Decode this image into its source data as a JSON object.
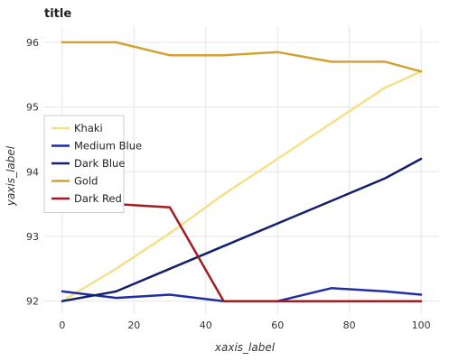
{
  "chart_data": {
    "type": "line",
    "title": "title",
    "xlabel": "xaxis_label",
    "ylabel": "yaxis_label",
    "x": [
      0,
      15,
      30,
      45,
      60,
      75,
      90,
      100
    ],
    "xlim": [
      -5,
      105
    ],
    "ylim": [
      91.8,
      96.25
    ],
    "xticks": [
      0,
      20,
      40,
      60,
      80,
      100
    ],
    "yticks": [
      92,
      93,
      94,
      95,
      96
    ],
    "grid": true,
    "legend_position": "left",
    "series": [
      {
        "name": "Khaki",
        "color": "#f5e08a",
        "values": [
          92.0,
          92.5,
          93.05,
          93.65,
          94.2,
          94.75,
          95.3,
          95.55
        ]
      },
      {
        "name": "Medium Blue",
        "color": "#1f2fa3",
        "values": [
          92.15,
          92.05,
          92.1,
          92.0,
          92.0,
          92.2,
          92.15,
          92.1
        ]
      },
      {
        "name": "Dark Blue",
        "color": "#121f6b",
        "values": [
          92.0,
          92.15,
          92.5,
          92.85,
          93.2,
          93.55,
          93.9,
          94.2
        ]
      },
      {
        "name": "Gold",
        "color": "#d1a232",
        "values": [
          96.0,
          96.0,
          95.8,
          95.8,
          95.85,
          95.7,
          95.7,
          95.55
        ]
      },
      {
        "name": "Dark Red",
        "color": "#a11d22",
        "values": [
          93.55,
          93.5,
          93.45,
          92.0,
          92.0,
          92.0,
          92.0,
          92.0
        ]
      }
    ]
  }
}
